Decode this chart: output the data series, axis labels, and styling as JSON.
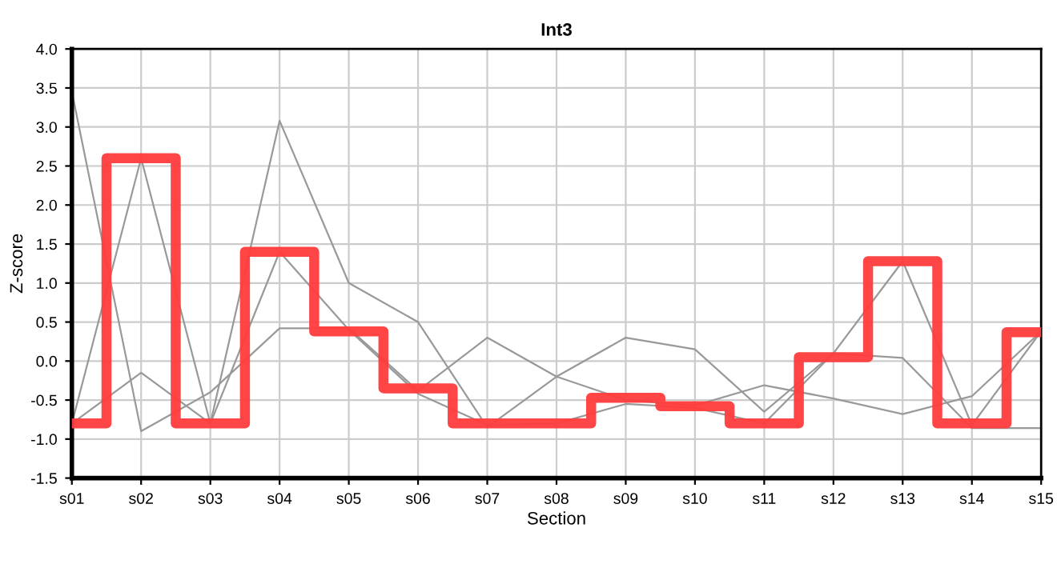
{
  "chart_data": {
    "type": "line",
    "title": "Int3",
    "xlabel": "Section",
    "ylabel": "Z-score",
    "categories": [
      "s01",
      "s02",
      "s03",
      "s04",
      "s05",
      "s06",
      "s07",
      "s08",
      "s09",
      "s10",
      "s11",
      "s12",
      "s13",
      "s14",
      "s15"
    ],
    "series": [
      {
        "color": "#999999",
        "values": [
          3.45,
          -0.9,
          -0.4,
          0.42,
          0.42,
          -0.38,
          0.3,
          -0.2,
          -0.5,
          -0.57,
          -0.31,
          -0.48,
          -0.68,
          -0.45,
          0.38
        ]
      },
      {
        "color": "#999999",
        "values": [
          -0.8,
          2.6,
          -0.8,
          3.08,
          1.0,
          0.5,
          -0.85,
          -0.2,
          0.3,
          0.15,
          -0.65,
          0.1,
          1.28,
          -0.82,
          0.38
        ]
      },
      {
        "color": "#999999",
        "values": [
          -0.8,
          -0.15,
          -0.8,
          1.4,
          0.4,
          -0.42,
          -0.82,
          -0.8,
          -0.55,
          -0.6,
          -0.8,
          0.1,
          0.04,
          -0.86,
          -0.86
        ]
      },
      {
        "type": "step",
        "color": "#ff3b3b",
        "values": [
          -0.8,
          2.6,
          -0.8,
          1.4,
          0.38,
          -0.35,
          -0.8,
          -0.8,
          -0.47,
          -0.58,
          -0.8,
          0.05,
          1.28,
          -0.8,
          0.37
        ]
      }
    ],
    "ylim": [
      -1.5,
      4.0
    ],
    "yticks": [
      {
        "value": -1.5,
        "label": "-1.5"
      },
      {
        "value": -1.0,
        "label": "-1.0"
      },
      {
        "value": -0.5,
        "label": "-0.5"
      },
      {
        "value": 0.0,
        "label": "0.0"
      },
      {
        "value": 0.5,
        "label": "0.5"
      },
      {
        "value": 1.0,
        "label": "1.0"
      },
      {
        "value": 1.5,
        "label": "1.5"
      },
      {
        "value": 2.0,
        "label": "2.0"
      },
      {
        "value": 2.5,
        "label": "2.5"
      },
      {
        "value": 3.0,
        "label": "3.0"
      },
      {
        "value": 3.5,
        "label": "3.5"
      },
      {
        "value": 4.0,
        "label": "4.0"
      }
    ],
    "grid": true,
    "marker": "none",
    "line_style": "solid"
  }
}
